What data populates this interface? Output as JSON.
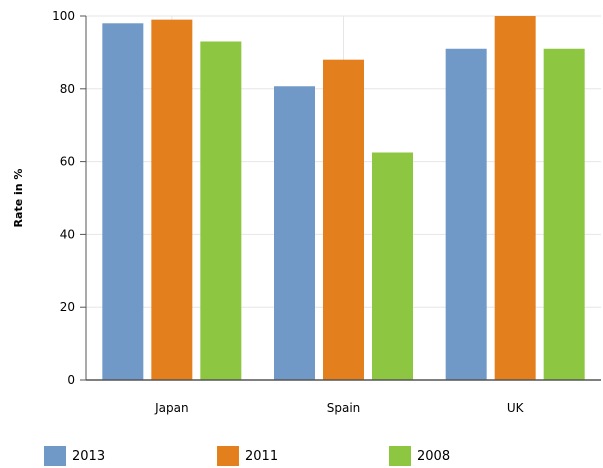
{
  "chart_data": {
    "type": "bar",
    "categories": [
      "Japan",
      "Spain",
      "UK"
    ],
    "series": [
      {
        "name": "2013",
        "values": [
          98,
          80.7,
          91
        ],
        "color": "#7099c7"
      },
      {
        "name": "2011",
        "values": [
          99,
          88,
          100
        ],
        "color": "#e47f1e"
      },
      {
        "name": "2008",
        "values": [
          93,
          62.5,
          91
        ],
        "color": "#8dc641"
      }
    ],
    "ylabel": "Rate in %",
    "xlabel": "",
    "ylim": [
      0,
      100
    ],
    "yticks": [
      0,
      20,
      40,
      60,
      80,
      100
    ],
    "grid": true,
    "legend_position": "bottom"
  }
}
